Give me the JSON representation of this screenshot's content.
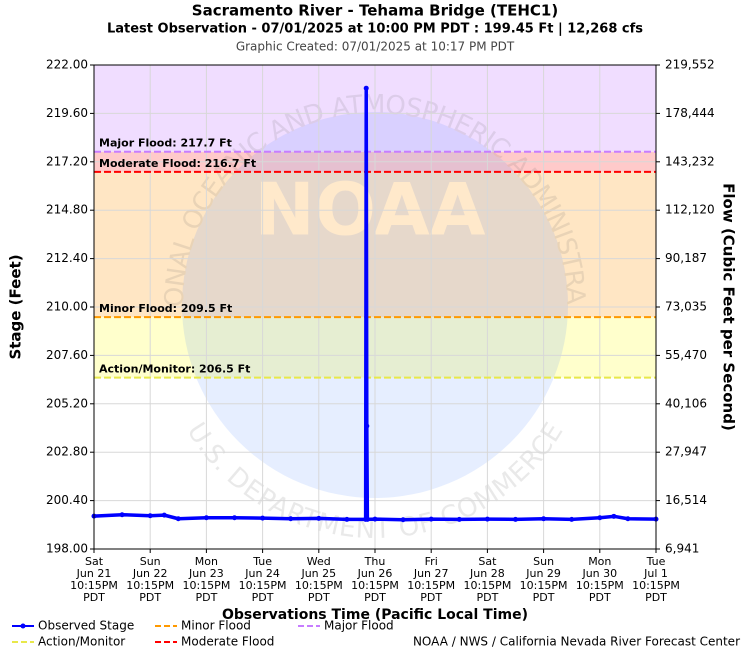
{
  "chart_data": {
    "type": "line",
    "title": "Sacramento River - Tehama Bridge (TEHC1)",
    "subtitle": "Latest Observation - 07/01/2025 at 10:00 PM PDT : 199.45 Ft | 12,268 cfs",
    "created": "Graphic Created: 07/01/2025 at 10:17 PM PDT",
    "xlabel": "Observations Time (Pacific Local Time)",
    "ylabel": "Stage (Feet)",
    "y2label": "Flow (Cubic Feet per Second)",
    "credit": "NOAA / NWS / California Nevada River Forecast Center",
    "watermark": {
      "logo": "NOAA",
      "top": "NATIONAL OCEANIC AND ATMOSPHERIC ADMINISTRATION",
      "bottom": "U.S. DEPARTMENT OF COMMERCE"
    },
    "grid": true,
    "xlim": [
      "06-21 22:15",
      "07-01 22:15"
    ],
    "xticks": [
      {
        "value": "06-21 22:15",
        "label": [
          "Sat",
          "Jun 21",
          "10:15PM",
          "PDT"
        ]
      },
      {
        "value": "06-22 22:15",
        "label": [
          "Sun",
          "Jun 22",
          "10:15PM",
          "PDT"
        ]
      },
      {
        "value": "06-23 22:15",
        "label": [
          "Mon",
          "Jun 23",
          "10:15PM",
          "PDT"
        ]
      },
      {
        "value": "06-24 22:15",
        "label": [
          "Tue",
          "Jun 24",
          "10:15PM",
          "PDT"
        ]
      },
      {
        "value": "06-25 22:15",
        "label": [
          "Wed",
          "Jun 25",
          "10:15PM",
          "PDT"
        ]
      },
      {
        "value": "06-26 22:15",
        "label": [
          "Thu",
          "Jun 26",
          "10:15PM",
          "PDT"
        ]
      },
      {
        "value": "06-27 22:15",
        "label": [
          "Fri",
          "Jun 27",
          "10:15PM",
          "PDT"
        ]
      },
      {
        "value": "06-28 22:15",
        "label": [
          "Sat",
          "Jun 28",
          "10:15PM",
          "PDT"
        ]
      },
      {
        "value": "06-29 22:15",
        "label": [
          "Sun",
          "Jun 29",
          "10:15PM",
          "PDT"
        ]
      },
      {
        "value": "06-30 22:15",
        "label": [
          "Mon",
          "Jun 30",
          "10:15PM",
          "PDT"
        ]
      },
      {
        "value": "07-01 22:15",
        "label": [
          "Tue",
          "Jul 1",
          "10:15PM",
          "PDT"
        ]
      }
    ],
    "ylim": [
      198,
      222
    ],
    "yticks": [
      {
        "value": 198,
        "label": "198.00"
      },
      {
        "value": 200.4,
        "label": "200.40"
      },
      {
        "value": 202.8,
        "label": "202.80"
      },
      {
        "value": 205.2,
        "label": "205.20"
      },
      {
        "value": 207.6,
        "label": "207.60"
      },
      {
        "value": 210,
        "label": "210.00"
      },
      {
        "value": 212.4,
        "label": "212.40"
      },
      {
        "value": 214.8,
        "label": "214.80"
      },
      {
        "value": 217.2,
        "label": "217.20"
      },
      {
        "value": 219.6,
        "label": "219.60"
      },
      {
        "value": 222,
        "label": "222.00"
      }
    ],
    "y2ticks": [
      {
        "value": 6941,
        "label": "6,941"
      },
      {
        "value": 16514,
        "label": "16,514"
      },
      {
        "value": 27947,
        "label": "27,947"
      },
      {
        "value": 40106,
        "label": "40,106"
      },
      {
        "value": 55470,
        "label": "55,470"
      },
      {
        "value": 73035,
        "label": "73,035"
      },
      {
        "value": 90187,
        "label": "90,187"
      },
      {
        "value": 112120,
        "label": "112,120"
      },
      {
        "value": 143232,
        "label": "143,232"
      },
      {
        "value": 178444,
        "label": "178,444"
      },
      {
        "value": 219552,
        "label": "219,552"
      }
    ],
    "thresholds": [
      {
        "name": "Action/Monitor",
        "label": "Action/Monitor: 206.5 Ft",
        "value": 206.5,
        "color": "#e8e84a",
        "band_color": "#ffffcc"
      },
      {
        "name": "Minor Flood",
        "label": "Minor Flood: 209.5 Ft",
        "value": 209.5,
        "color": "#ff9900",
        "band_color": "#ffe6c4"
      },
      {
        "name": "Moderate Flood",
        "label": "Moderate Flood: 216.7 Ft",
        "value": 216.7,
        "color": "#ff0000",
        "band_color": "#ffcaca"
      },
      {
        "name": "Major Flood",
        "label": "Major Flood: 217.7 Ft",
        "value": 217.7,
        "color": "#c77dff",
        "band_color": "#f0ddff"
      }
    ],
    "series": [
      {
        "name": "Observed Stage",
        "color": "#0000ff",
        "x": [
          "06-21 22:15",
          "06-22 10:15",
          "06-22 22:15",
          "06-23 04:15",
          "06-23 10:15",
          "06-23 22:15",
          "06-24 10:15",
          "06-24 22:15",
          "06-25 10:15",
          "06-25 22:15",
          "06-26 10:15",
          "06-26 18:15",
          "06-26 18:30",
          "06-26 18:45",
          "06-26 19:00",
          "06-26 22:15",
          "06-27 10:15",
          "06-27 22:15",
          "06-28 10:15",
          "06-28 22:15",
          "06-29 10:15",
          "06-29 22:15",
          "06-30 10:15",
          "06-30 22:15",
          "07-01 04:15",
          "07-01 10:15",
          "07-01 22:15"
        ],
        "values": [
          199.63,
          199.7,
          199.65,
          199.68,
          199.5,
          199.55,
          199.55,
          199.53,
          199.5,
          199.52,
          199.47,
          199.47,
          220.85,
          204.1,
          199.47,
          199.48,
          199.45,
          199.48,
          199.47,
          199.48,
          199.47,
          199.5,
          199.47,
          199.55,
          199.62,
          199.5,
          199.48
        ]
      }
    ]
  }
}
